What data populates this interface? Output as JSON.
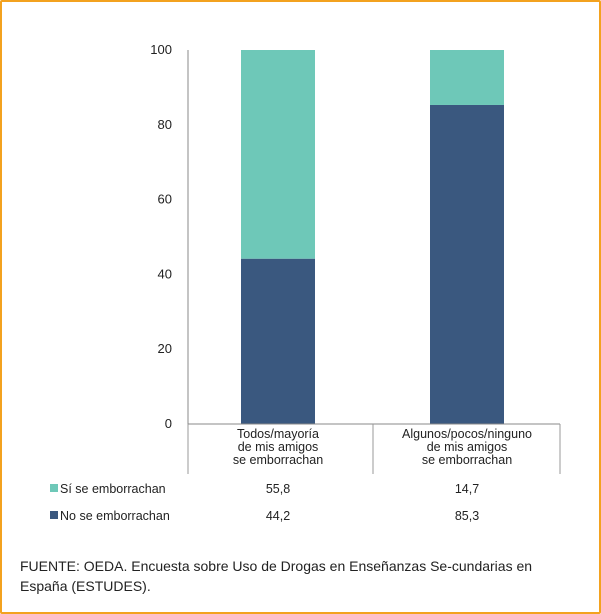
{
  "chart_data": {
    "type": "bar",
    "stacked": true,
    "categories": [
      [
        "Todos/mayoría",
        "de mis amigos",
        "se emborrachan"
      ],
      [
        "Algunos/pocos/ninguno",
        "de mis amigos",
        "se emborrachan"
      ]
    ],
    "series": [
      {
        "name": "Sí se emborrachan",
        "values": [
          55.8,
          14.7
        ],
        "labels": [
          "55,8",
          "14,7"
        ],
        "color": "#6ec8b8"
      },
      {
        "name": "No se emborrachan",
        "values": [
          44.2,
          85.3
        ],
        "labels": [
          "44,2",
          "85,3"
        ],
        "color": "#3a587f"
      }
    ],
    "ylim": [
      0,
      100
    ],
    "yticks": [
      "0",
      "20",
      "40",
      "60",
      "80",
      "100"
    ],
    "grid": false,
    "legend": "data-table below chart"
  },
  "source": "FUENTE: OEDA. Encuesta sobre Uso de Drogas en Enseñanzas Se-cundarias en España (ESTUDES)."
}
